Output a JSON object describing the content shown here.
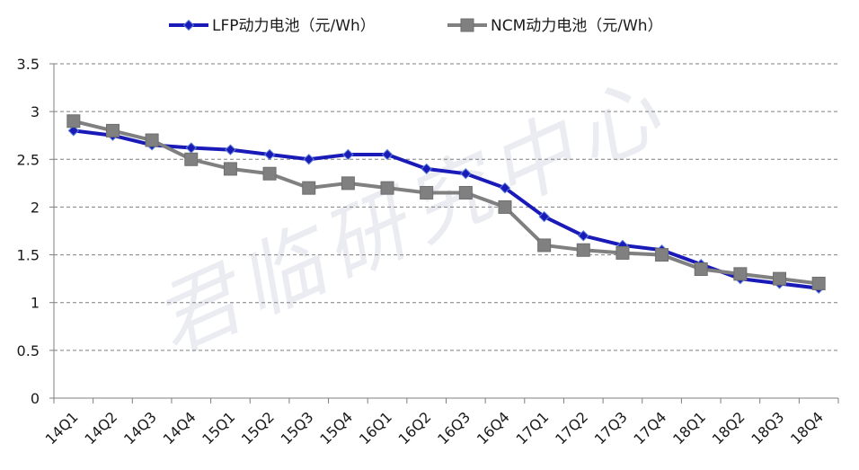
{
  "watermark": "君临研究中心",
  "chart_data": {
    "type": "line",
    "title": "",
    "xlabel": "",
    "ylabel": "",
    "categories": [
      "14Q1",
      "14Q2",
      "14Q3",
      "14Q4",
      "15Q1",
      "15Q2",
      "15Q3",
      "15Q4",
      "16Q1",
      "16Q2",
      "16Q3",
      "16Q4",
      "17Q1",
      "17Q2",
      "17Q3",
      "17Q4",
      "18Q1",
      "18Q2",
      "18Q3",
      "18Q4"
    ],
    "ylim": [
      0,
      3.5
    ],
    "yticks": [
      0,
      0.5,
      1,
      1.5,
      2,
      2.5,
      3,
      3.5
    ],
    "ytick_labels": [
      "0",
      "0.5",
      "1",
      "1.5",
      "2",
      "2.5",
      "3",
      "3.5"
    ],
    "grid": "horizontal-dashed",
    "legend_position": "top",
    "series": [
      {
        "name": "LFP动力电池（元/Wh）",
        "color": "#1a1ab8",
        "marker": "diamond",
        "values": [
          2.8,
          2.75,
          2.65,
          2.62,
          2.6,
          2.55,
          2.5,
          2.55,
          2.55,
          2.4,
          2.35,
          2.2,
          1.9,
          1.7,
          1.6,
          1.55,
          1.4,
          1.25,
          1.2,
          1.15
        ]
      },
      {
        "name": "NCM动力电池（元/Wh）",
        "color": "#808080",
        "marker": "square",
        "values": [
          2.9,
          2.8,
          2.7,
          2.5,
          2.4,
          2.35,
          2.2,
          2.25,
          2.2,
          2.15,
          2.15,
          2.0,
          1.6,
          1.55,
          1.52,
          1.5,
          1.35,
          1.3,
          1.25,
          1.2
        ]
      }
    ]
  }
}
